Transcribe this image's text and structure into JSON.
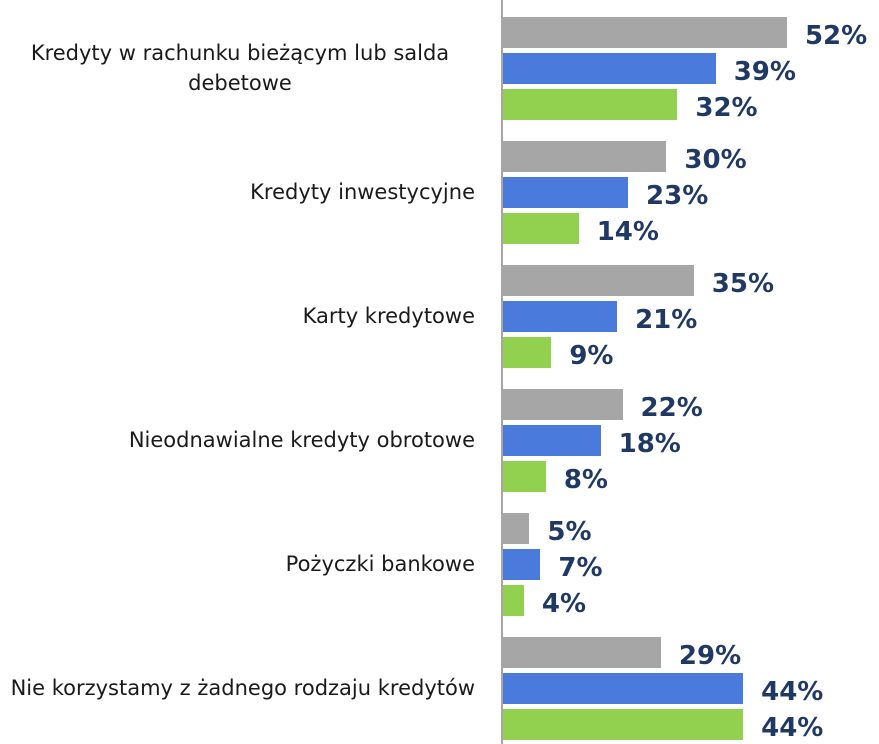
{
  "chart_data": {
    "type": "bar",
    "orientation": "horizontal",
    "categories": [
      "Kredyty w rachunku bieżącym lub salda debetowe",
      "Kredyty inwestycyjne",
      "Karty kredytowe",
      "Nieodnawialne kredyty obrotowe",
      "Pożyczki bankowe",
      "Nie korzystamy z żadnego rodzaju kredytów"
    ],
    "series": [
      {
        "color": "#a6a6a6",
        "values": [
          52,
          30,
          35,
          22,
          5,
          29
        ],
        "value_labels": [
          "52%",
          "30%",
          "35%",
          "22%",
          "5%",
          "29%"
        ]
      },
      {
        "color": "#4a7bdc",
        "values": [
          39,
          23,
          21,
          18,
          7,
          44
        ],
        "value_labels": [
          "39%",
          "23%",
          "21%",
          "18%",
          "7%",
          "44%"
        ]
      },
      {
        "color": "#92d050",
        "values": [
          32,
          14,
          9,
          8,
          4,
          44
        ],
        "value_labels": [
          "32%",
          "14%",
          "9%",
          "8%",
          "4%",
          "44%"
        ]
      }
    ]
  }
}
